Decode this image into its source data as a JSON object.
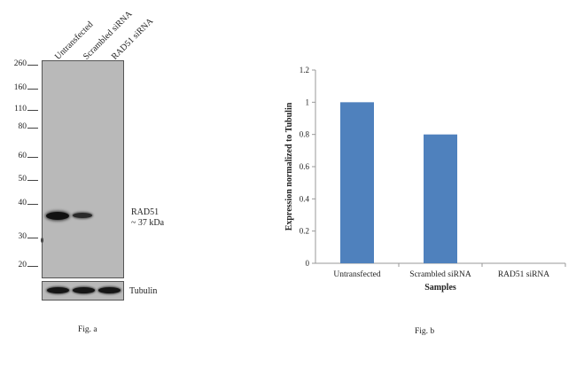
{
  "western_blot": {
    "lanes": [
      "Untransfected",
      "Scrambled siRNA",
      "RAD51 siRNA"
    ],
    "mw_markers": [
      "260",
      "160",
      "110",
      "80",
      "60",
      "50",
      "40",
      "30",
      "20"
    ],
    "target_label_line1": "RAD51",
    "target_label_line2": "~ 37 kDa",
    "loading_control_label": "Tubulin",
    "caption": "Fig. a"
  },
  "chart_data": {
    "type": "bar",
    "categories": [
      "Untransfected",
      "Scrambled siRNA",
      "RAD51 siRNA"
    ],
    "values": [
      1.0,
      0.8,
      0.0
    ],
    "ylim": [
      0,
      1.2
    ],
    "yticks": [
      "0",
      "0.2",
      "0.4",
      "0.6",
      "0.8",
      "1",
      "1.2"
    ],
    "xlabel": "Samples",
    "ylabel": "Expression  normalized to Tubulin",
    "bar_color": "#4f81bd",
    "grid": false,
    "legend": "none",
    "caption": "Fig. b"
  }
}
